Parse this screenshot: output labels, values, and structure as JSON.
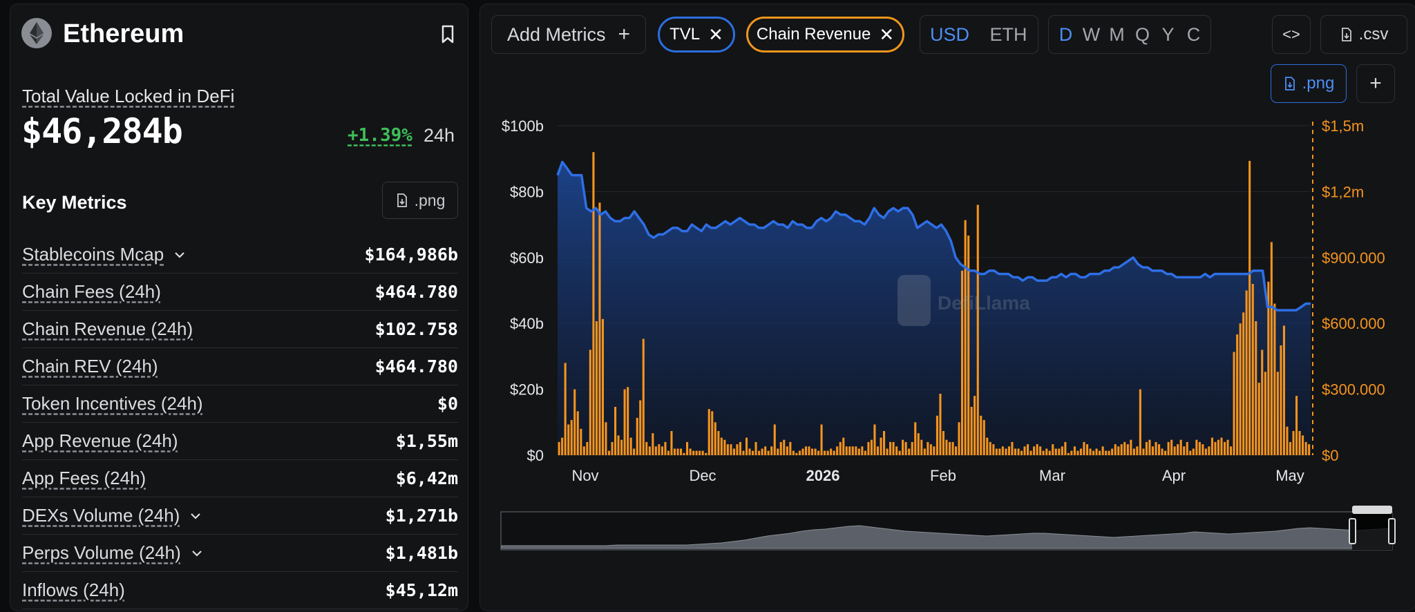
{
  "chain": {
    "name": "Ethereum"
  },
  "tvl": {
    "label": "Total Value Locked in DeFi",
    "value": "$46,284b",
    "change": "+1.39%",
    "period": "24h"
  },
  "key_metrics": {
    "title": "Key Metrics",
    "png_label": ".png",
    "rows": [
      {
        "label": "Stablecoins Mcap",
        "value": "$164,986b",
        "expandable": true
      },
      {
        "label": "Chain Fees (24h)",
        "value": "$464.780",
        "expandable": false
      },
      {
        "label": "Chain Revenue (24h)",
        "value": "$102.758",
        "expandable": false
      },
      {
        "label": "Chain REV (24h)",
        "value": "$464.780",
        "expandable": false
      },
      {
        "label": "Token Incentives (24h)",
        "value": "$0",
        "expandable": false
      },
      {
        "label": "App Revenue (24h)",
        "value": "$1,55m",
        "expandable": false
      },
      {
        "label": "App Fees (24h)",
        "value": "$6,42m",
        "expandable": false
      },
      {
        "label": "DEXs Volume (24h)",
        "value": "$1,271b",
        "expandable": true
      },
      {
        "label": "Perps Volume (24h)",
        "value": "$1,481b",
        "expandable": true
      },
      {
        "label": "Inflows (24h)",
        "value": "$45,12m",
        "expandable": false
      }
    ]
  },
  "toolbar": {
    "add_metrics": "Add Metrics",
    "pills": [
      {
        "label": "TVL",
        "color": "#2b6fe0"
      },
      {
        "label": "Chain Revenue",
        "color": "#f0961d"
      }
    ],
    "currency": [
      "USD",
      "ETH"
    ],
    "currency_active": "USD",
    "periods": [
      "D",
      "W",
      "M",
      "Q",
      "Y",
      "C"
    ],
    "period_active": "D",
    "embed_label": "<>",
    "csv_label": ".csv",
    "png_label": ".png"
  },
  "watermark": "DefiLlama",
  "colors": {
    "tvl": "#3b82f6",
    "revenue": "#f5941d",
    "accent": "#4d8ef5",
    "positive": "#3fbf59"
  },
  "chart_data": {
    "type": "bar+area",
    "x_ticks": [
      "Nov",
      "Dec",
      "2026",
      "Feb",
      "Mar",
      "Apr",
      "May"
    ],
    "y_left": {
      "label": "",
      "ticks": [
        "$0",
        "$20b",
        "$40b",
        "$60b",
        "$80b",
        "$100b"
      ],
      "range": [
        0,
        100
      ]
    },
    "y_right": {
      "label": "",
      "ticks": [
        "$0",
        "$300.000",
        "$600.000",
        "$900.000",
        "$1,2m",
        "$1,5m"
      ],
      "range": [
        0,
        1500000
      ]
    },
    "series": [
      {
        "name": "TVL",
        "type": "area",
        "unit": "billion USD",
        "values": [
          85,
          89,
          87,
          85,
          85,
          85,
          75,
          74,
          75,
          73,
          74,
          72,
          71,
          71,
          72,
          72,
          74,
          72,
          70,
          67,
          66,
          67,
          67,
          68,
          69,
          69,
          68,
          68,
          70,
          69,
          68,
          70,
          69,
          69,
          70,
          71,
          70,
          71,
          72,
          71,
          70,
          70,
          69,
          69,
          70,
          71,
          70,
          70,
          69,
          71,
          70,
          70,
          69,
          69,
          71,
          72,
          71,
          72,
          74,
          73,
          73,
          72,
          71,
          71,
          70,
          72,
          75,
          73,
          72,
          74,
          75,
          74,
          75,
          75,
          73,
          69,
          70,
          71,
          70,
          69,
          70,
          68,
          65,
          60,
          58,
          57,
          56,
          56,
          55,
          55,
          56,
          56,
          55,
          55,
          55,
          54,
          54,
          53,
          54,
          54,
          53,
          53,
          53,
          54,
          54,
          55,
          54,
          55,
          55,
          54,
          54,
          55,
          55,
          55,
          56,
          56,
          57,
          57,
          58,
          59,
          60,
          58,
          57,
          57,
          56,
          56,
          56,
          55,
          55,
          54,
          54,
          54,
          54,
          54,
          54,
          55,
          54,
          55,
          55,
          55,
          55,
          55,
          55,
          55,
          55,
          56,
          56,
          56,
          45,
          45,
          44,
          44,
          44,
          44,
          44,
          45,
          46,
          46
        ]
      },
      {
        "name": "Chain Revenue",
        "type": "bar",
        "unit": "USD",
        "values": [
          60000,
          80000,
          420000,
          140000,
          160000,
          300000,
          200000,
          120000,
          40000,
          60000,
          480000,
          1380000,
          610000,
          1150000,
          620000,
          150000,
          20000,
          60000,
          220000,
          90000,
          70000,
          300000,
          310000,
          80000,
          30000,
          170000,
          250000,
          530000,
          60000,
          40000,
          100000,
          40000,
          50000,
          40000,
          60000,
          20000,
          110000,
          30000,
          30000,
          30000,
          10000,
          60000,
          30000,
          20000,
          20000,
          20000,
          20000,
          10000,
          210000,
          200000,
          150000,
          110000,
          80000,
          70000,
          50000,
          50000,
          30000,
          50000,
          60000,
          20000,
          80000,
          30000,
          20000,
          60000,
          20000,
          30000,
          40000,
          20000,
          40000,
          140000,
          30000,
          60000,
          70000,
          40000,
          60000,
          20000,
          10000,
          20000,
          30000,
          40000,
          40000,
          30000,
          30000,
          20000,
          140000,
          20000,
          20000,
          30000,
          20000,
          40000,
          60000,
          80000,
          40000,
          40000,
          40000,
          40000,
          30000,
          40000,
          20000,
          60000,
          70000,
          140000,
          40000,
          80000,
          110000,
          30000,
          60000,
          60000,
          40000,
          20000,
          70000,
          60000,
          30000,
          60000,
          150000,
          100000,
          70000,
          30000,
          60000,
          50000,
          40000,
          180000,
          280000,
          110000,
          70000,
          60000,
          60000,
          40000,
          150000,
          840000,
          1070000,
          1000000,
          220000,
          270000,
          1140000,
          180000,
          160000,
          80000,
          60000,
          50000,
          30000,
          30000,
          40000,
          30000,
          40000,
          60000,
          30000,
          30000,
          20000,
          40000,
          50000,
          20000,
          40000,
          50000,
          40000,
          20000,
          30000,
          20000,
          50000,
          30000,
          30000,
          40000,
          60000,
          10000,
          20000,
          40000,
          20000,
          30000,
          60000,
          50000,
          30000,
          20000,
          30000,
          20000,
          40000,
          20000,
          20000,
          30000,
          50000,
          40000,
          50000,
          60000,
          50000,
          70000,
          30000,
          40000,
          300000,
          30000,
          60000,
          70000,
          40000,
          60000,
          50000,
          30000,
          20000,
          60000,
          70000,
          40000,
          50000,
          70000,
          40000,
          60000,
          20000,
          30000,
          70000,
          60000,
          50000,
          30000,
          40000,
          80000,
          60000,
          70000,
          80000,
          60000,
          70000,
          40000,
          470000,
          550000,
          600000,
          650000,
          750000,
          1340000,
          780000,
          610000,
          330000,
          480000,
          380000,
          790000,
          970000,
          690000,
          380000,
          500000,
          590000,
          130000,
          60000,
          110000,
          270000,
          110000,
          90000,
          60000,
          50000
        ]
      }
    ]
  }
}
